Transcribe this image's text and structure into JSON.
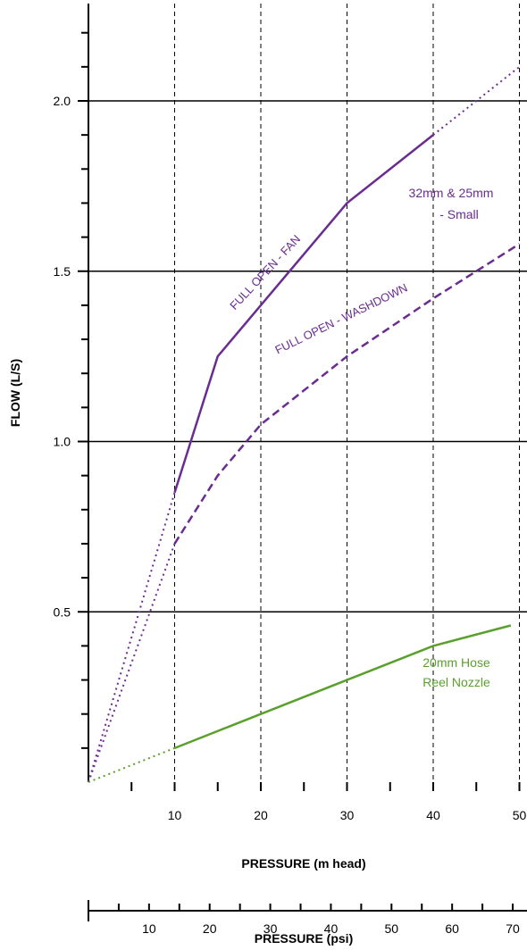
{
  "colors": {
    "purple": "#6b2c91",
    "green": "#5aa02c",
    "axis": "#000000",
    "grid": "#000000"
  },
  "chart_data": {
    "type": "line",
    "xlabel": "PRESSURE (m head)",
    "ylabel": "FLOW (L/S)",
    "secondary_xlabel": "PRESSURE (psi)",
    "xlim": [
      0,
      50
    ],
    "ylim": [
      0,
      2.3
    ],
    "x_ticks": [
      10,
      20,
      30,
      40,
      50
    ],
    "y_ticks": [
      0.5,
      1.0,
      1.5,
      2.0
    ],
    "y_tick_labels": [
      "0.5",
      "1.0",
      "1.5",
      "2.0"
    ],
    "psi_ticks": [
      10,
      20,
      30,
      40,
      50,
      60,
      70
    ],
    "grid": {
      "y_major": "solid",
      "x_major": "dashed"
    },
    "series": [
      {
        "label_on_chart": "FULL OPEN - FAN",
        "color": "purple",
        "style": "solid",
        "points": [
          [
            10,
            0.85
          ],
          [
            15,
            1.25
          ],
          [
            30,
            1.7
          ],
          [
            40,
            1.9
          ]
        ],
        "extrapolated": [
          [
            [
              0,
              0
            ],
            [
              10,
              0.85
            ]
          ],
          [
            [
              40,
              1.9
            ],
            [
              50,
              2.1
            ]
          ]
        ]
      },
      {
        "label_on_chart": "FULL OPEN - WASHDOWN",
        "color": "purple",
        "style": "dashed",
        "points": [
          [
            10,
            0.7
          ],
          [
            15,
            0.9
          ],
          [
            20,
            1.05
          ],
          [
            30,
            1.25
          ],
          [
            40,
            1.42
          ],
          [
            50,
            1.58
          ]
        ],
        "extrapolated": [
          [
            [
              0,
              0
            ],
            [
              10,
              0.7
            ]
          ]
        ]
      },
      {
        "label_on_chart": "20mm Hose Reel Nozzle",
        "color": "green",
        "style": "solid",
        "points": [
          [
            10,
            0.1
          ],
          [
            20,
            0.2
          ],
          [
            30,
            0.3
          ],
          [
            40,
            0.4
          ],
          [
            49,
            0.46
          ]
        ],
        "extrapolated": [
          [
            [
              0,
              0
            ],
            [
              10,
              0.1
            ]
          ]
        ]
      }
    ],
    "annotations": [
      {
        "text": "FULL OPEN - FAN",
        "color": "purple"
      },
      {
        "text": "FULL OPEN - WASHDOWN",
        "color": "purple"
      },
      {
        "text": "32mm & 25mm",
        "color": "purple"
      },
      {
        "text": "- Small",
        "color": "purple"
      },
      {
        "text": "20mm Hose",
        "color": "green"
      },
      {
        "text": "Reel Nozzle",
        "color": "green"
      }
    ]
  }
}
